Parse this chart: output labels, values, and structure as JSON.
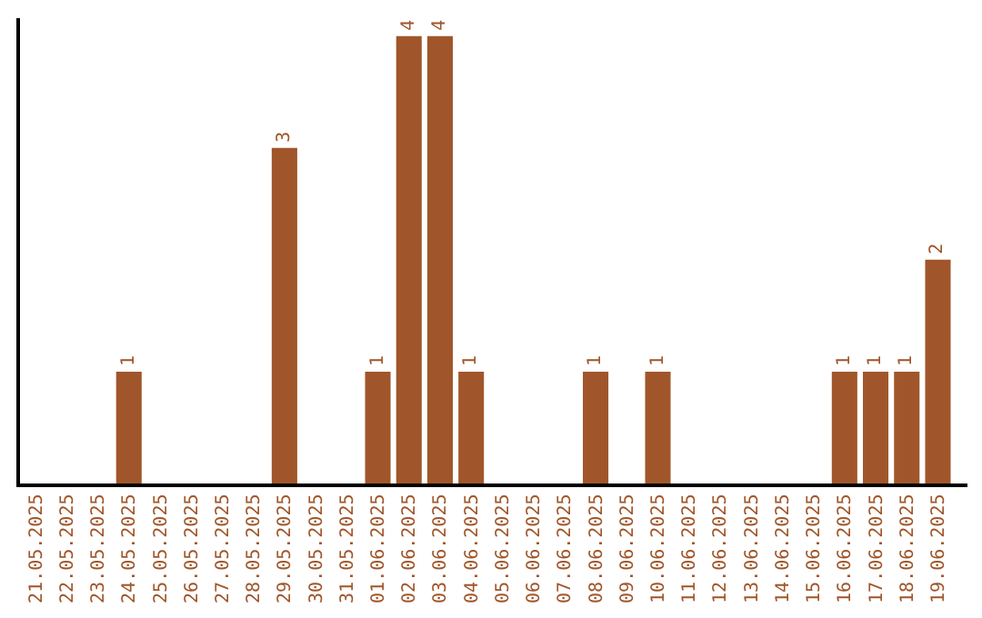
{
  "chart_data": {
    "type": "bar",
    "categories": [
      "21.05.2025",
      "22.05.2025",
      "23.05.2025",
      "24.05.2025",
      "25.05.2025",
      "26.05.2025",
      "27.05.2025",
      "28.05.2025",
      "29.05.2025",
      "30.05.2025",
      "31.05.2025",
      "01.06.2025",
      "02.06.2025",
      "03.06.2025",
      "04.06.2025",
      "05.06.2025",
      "06.06.2025",
      "07.06.2025",
      "08.06.2025",
      "09.06.2025",
      "10.06.2025",
      "11.06.2025",
      "12.06.2025",
      "13.06.2025",
      "14.06.2025",
      "15.06.2025",
      "16.06.2025",
      "17.06.2025",
      "18.06.2025",
      "19.06.2025"
    ],
    "values": [
      0,
      0,
      0,
      1,
      0,
      0,
      0,
      0,
      3,
      0,
      0,
      1,
      4,
      4,
      1,
      0,
      0,
      0,
      1,
      0,
      1,
      0,
      0,
      0,
      0,
      0,
      1,
      1,
      1,
      2
    ],
    "value_labels": [
      null,
      null,
      null,
      "1",
      null,
      null,
      null,
      null,
      "3",
      null,
      null,
      "1",
      "4",
      "4",
      "1",
      null,
      null,
      null,
      "1",
      null,
      "1",
      null,
      null,
      null,
      null,
      null,
      "1",
      "1",
      "1",
      "2"
    ],
    "color": "#a0562a",
    "tick_labels": "x"
  }
}
